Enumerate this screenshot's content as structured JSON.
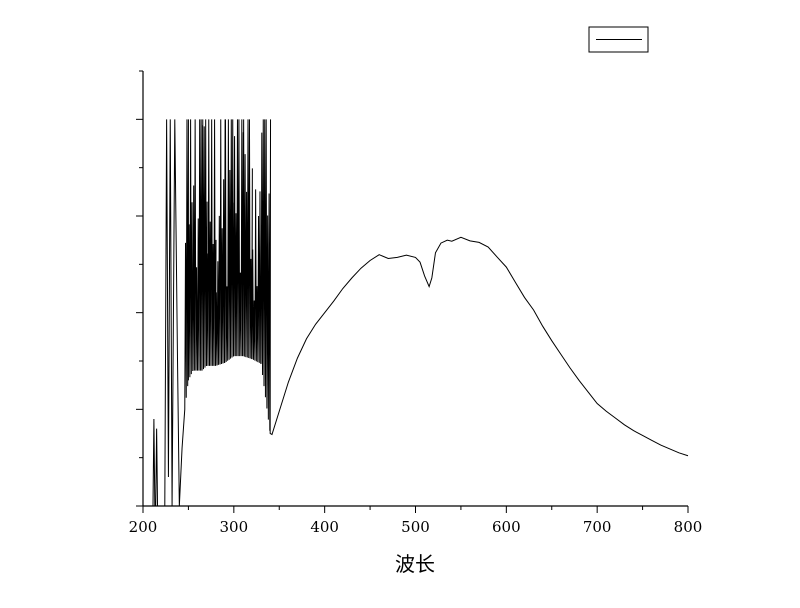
{
  "chart_data": {
    "type": "line",
    "title": "",
    "xlabel": "波长",
    "ylabel": "",
    "xlim": [
      200,
      800
    ],
    "xticks": [
      200,
      300,
      400,
      500,
      600,
      700,
      800
    ],
    "xtick_labels": [
      "200",
      "300",
      "400",
      "500",
      "600",
      "700",
      "800"
    ],
    "ylim": [
      0,
      4.5
    ],
    "yticks": [
      0,
      0.5,
      1,
      1.5,
      2,
      2.5,
      3,
      3.5,
      4,
      4.5
    ],
    "ytick_labels": [],
    "grid": false,
    "legend": {
      "placement": "top-right",
      "entries": [
        ""
      ]
    },
    "line_color": "#000000",
    "series": [
      {
        "x": [
          210,
          211,
          212,
          213,
          214,
          215,
          216,
          218,
          220,
          222,
          224,
          226,
          228,
          230,
          232,
          235,
          238,
          240,
          243,
          246,
          250,
          255,
          260,
          265,
          270,
          280,
          290,
          300,
          310,
          320,
          330,
          340,
          342,
          350,
          360,
          370,
          380,
          390,
          400,
          410,
          420,
          430,
          440,
          450,
          460,
          470,
          480,
          490,
          500,
          505,
          510,
          515,
          518,
          522,
          528,
          535,
          540,
          550,
          560,
          570,
          580,
          590,
          600,
          610,
          620,
          630,
          640,
          650,
          660,
          670,
          680,
          690,
          700,
          710,
          720,
          730,
          740,
          750,
          760,
          770,
          780,
          790,
          800
        ],
        "y": [
          0,
          0,
          0.9,
          0,
          0,
          0.8,
          0,
          0,
          0,
          0,
          0,
          4.0,
          0.3,
          4.0,
          0,
          4.0,
          1.5,
          0,
          0.6,
          1.0,
          1.3,
          1.4,
          1.4,
          1.4,
          1.45,
          1.45,
          1.48,
          1.55,
          1.55,
          1.52,
          1.47,
          0.75,
          0.74,
          0.98,
          1.28,
          1.53,
          1.73,
          1.88,
          2.0,
          2.12,
          2.25,
          2.36,
          2.46,
          2.54,
          2.58,
          2.58,
          2.6,
          2.62,
          2.6,
          2.52,
          2.38,
          2.27,
          2.36,
          2.62,
          2.7,
          2.73,
          2.76,
          2.78,
          2.77,
          2.74,
          2.68,
          2.6,
          2.48,
          2.33,
          2.17,
          2.01,
          1.86,
          1.71,
          1.57,
          1.43,
          1.3,
          1.18,
          1.06,
          0.98,
          0.91,
          0.84,
          0.78,
          0.73,
          0.68,
          0.63,
          0.59,
          0.55,
          0.52
        ],
        "spikes_min": [
          0,
          1.4,
          1.4,
          1.4,
          1.45,
          1.45,
          1.48,
          1.55,
          1.55,
          1.52,
          1.47
        ],
        "spikes_range_x": [
          226,
          340
        ]
      }
    ]
  }
}
